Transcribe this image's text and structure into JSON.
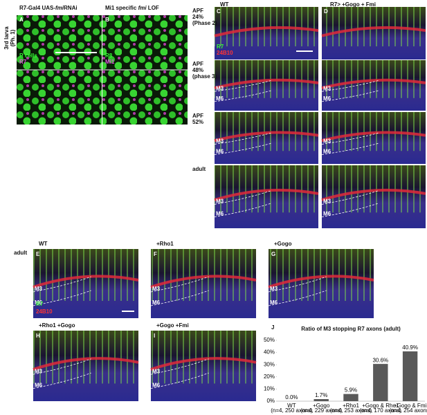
{
  "figure": {
    "stage_label": [
      "3rd larva",
      "(Ph. 1)"
    ],
    "panel_A": {
      "letter": "A",
      "title": [
        "R7-Gal4 UAS-",
        "fmi",
        "RNAi"
      ],
      "labels": [
        "R cells",
        "R7"
      ]
    },
    "panel_B": {
      "letter": "B",
      "title": [
        "Mi1 specific ",
        "fmi",
        " LOF"
      ],
      "labels": [
        "R8",
        "Mi1"
      ]
    },
    "column_C": {
      "letter": "C",
      "title": "WT",
      "labels": [
        "R7",
        "24B10"
      ]
    },
    "column_D": {
      "letter": "D",
      "title": "R7> +Gogo + Fmi"
    },
    "stages": [
      [
        "APF",
        "24%",
        "(Phase 2)"
      ],
      [
        "APF",
        "48%",
        "(phase 3)"
      ],
      [
        "APF",
        "52%"
      ],
      [
        "adult"
      ]
    ],
    "layers": [
      "M3",
      "M6"
    ],
    "adult_label": "adult",
    "panels_lower": [
      {
        "letter": "E",
        "title": "WT"
      },
      {
        "letter": "F",
        "title": "+Rho1"
      },
      {
        "letter": "G",
        "title": "+Gogo"
      },
      {
        "letter": "H",
        "title": "+Rho1 +Gogo"
      },
      {
        "letter": "I",
        "title": "+Gogo +Fmi"
      }
    ],
    "lower_labels": [
      "R7",
      "24B10"
    ],
    "chart_letter": "J"
  },
  "chart_data": {
    "type": "bar",
    "title": "Ratio of M3 stopping R7 axons (adult)",
    "categories": [
      "WT",
      "+Gogo",
      "+Rho1",
      "+Gogo & Rho1",
      "+Gogo & Fmi"
    ],
    "category_sublabels": [
      "(n=4, 250 axons)",
      "(n=4, 229 axons)",
      "(n=4, 253 axons)",
      "(n=4, 170 axons)",
      "(n=4, 254 axons)"
    ],
    "values": [
      0.0,
      1.7,
      5.9,
      30.6,
      40.9
    ],
    "value_labels": [
      "0.0%",
      "1.7%",
      "5.9%",
      "30.6%",
      "40.9%"
    ],
    "color": "#595959",
    "ylim": [
      0,
      50
    ],
    "yticks": [
      {
        "value": 0,
        "label": "0%"
      },
      {
        "value": 10,
        "label": "10%"
      },
      {
        "value": 20,
        "label": "20%"
      },
      {
        "value": 30,
        "label": "30%"
      },
      {
        "value": 40,
        "label": "40%"
      },
      {
        "value": 50,
        "label": "50%"
      }
    ],
    "grid": false
  }
}
